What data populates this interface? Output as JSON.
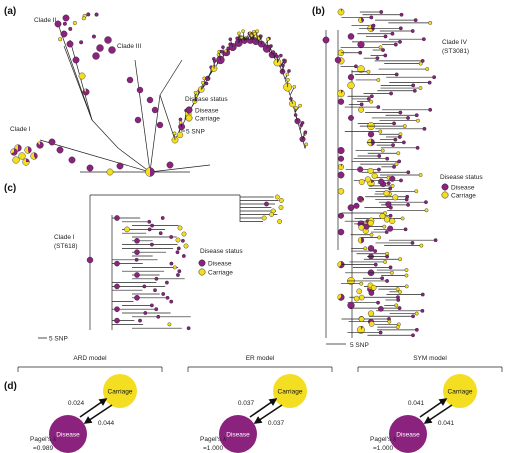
{
  "colors": {
    "disease": "#8B237E",
    "carriage": "#F4DE22",
    "branch": "#222222"
  },
  "panel_a": {
    "label": "(a)",
    "clades": [
      "Clade II",
      "Clade III",
      "Clade IV",
      "Clade I"
    ],
    "legend": {
      "title": "Disease status",
      "disease": "Disease",
      "carriage": "Carriage"
    },
    "scale": "5 SNP"
  },
  "panel_b": {
    "label": "(b)",
    "clade": "Clade IV",
    "clade_st": "(ST3081)",
    "legend": {
      "title": "Disease status",
      "disease": "Disease",
      "carriage": "Carriage"
    },
    "scale": "5 SNP"
  },
  "panel_c": {
    "label": "(c)",
    "clade": "Clade I",
    "clade_st": "(ST618)",
    "legend": {
      "title": "Disease status",
      "disease": "Disease",
      "carriage": "Carriage"
    },
    "scale": "5 SNP"
  },
  "panel_d": {
    "label": "(d)",
    "models": [
      {
        "name": "ARD model",
        "carriage": "Carriage",
        "disease": "Disease",
        "rate_to_carriage": "0.024",
        "rate_to_disease": "0.044",
        "pagel_label": "Pagel's λ",
        "pagel_value": "=0.989"
      },
      {
        "name": "ER model",
        "carriage": "Carriage",
        "disease": "Disease",
        "rate_to_carriage": "0.037",
        "rate_to_disease": "0.037",
        "pagel_label": "Pagel's λ",
        "pagel_value": "=1.000"
      },
      {
        "name": "SYM model",
        "carriage": "Carriage",
        "disease": "Disease",
        "rate_to_carriage": "0.041",
        "rate_to_disease": "0.041",
        "pagel_label": "Pagel's λ",
        "pagel_value": "=1.000"
      }
    ]
  }
}
